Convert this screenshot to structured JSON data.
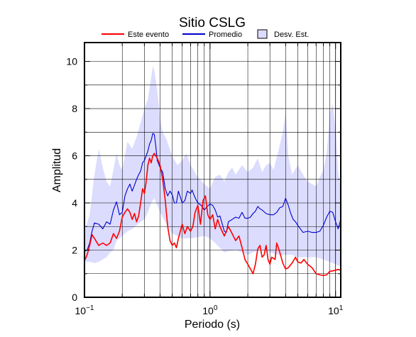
{
  "chart_data": {
    "type": "line",
    "title": "Sitio CSLG",
    "xlabel": "Periodo (s)",
    "ylabel": "Amplitud",
    "xscale": "log",
    "xlim": [
      0.1,
      11
    ],
    "ylim": [
      0,
      10.8
    ],
    "grid": true,
    "legend_position": "top",
    "x_ticks": [
      {
        "value": 0.1,
        "base": "10",
        "exp": "−1"
      },
      {
        "value": 1,
        "base": "10",
        "exp": "0"
      },
      {
        "value": 10,
        "base": "10",
        "exp": "1"
      }
    ],
    "y_ticks": [
      {
        "value": 0,
        "label": "0"
      },
      {
        "value": 2,
        "label": "2"
      },
      {
        "value": 4,
        "label": "4"
      },
      {
        "value": 6,
        "label": "6"
      },
      {
        "value": 8,
        "label": "8"
      },
      {
        "value": 10,
        "label": "10"
      }
    ],
    "legend": [
      {
        "label": "Este evento",
        "kind": "line",
        "color": "#ff0000"
      },
      {
        "label": "Promedio",
        "kind": "line",
        "color": "#0000cc"
      },
      {
        "label": "Desv. Est.",
        "kind": "patch",
        "color": "#dcdcff"
      }
    ],
    "series": [
      {
        "name": "Este evento",
        "color": "#ff0000",
        "points": [
          [
            0.1,
            1.55
          ],
          [
            0.105,
            1.8
          ],
          [
            0.11,
            2.2
          ],
          [
            0.115,
            2.65
          ],
          [
            0.12,
            2.5
          ],
          [
            0.13,
            2.2
          ],
          [
            0.14,
            2.3
          ],
          [
            0.15,
            2.2
          ],
          [
            0.16,
            2.3
          ],
          [
            0.17,
            2.7
          ],
          [
            0.18,
            2.5
          ],
          [
            0.19,
            2.8
          ],
          [
            0.2,
            3.4
          ],
          [
            0.21,
            3.6
          ],
          [
            0.22,
            3.75
          ],
          [
            0.23,
            3.6
          ],
          [
            0.24,
            3.3
          ],
          [
            0.25,
            3.55
          ],
          [
            0.26,
            3.2
          ],
          [
            0.27,
            3.45
          ],
          [
            0.28,
            4.0
          ],
          [
            0.29,
            4.6
          ],
          [
            0.3,
            4.4
          ],
          [
            0.31,
            4.9
          ],
          [
            0.32,
            5.6
          ],
          [
            0.33,
            5.9
          ],
          [
            0.34,
            5.7
          ],
          [
            0.35,
            6.0
          ],
          [
            0.36,
            6.1
          ],
          [
            0.38,
            5.9
          ],
          [
            0.4,
            5.6
          ],
          [
            0.42,
            5.0
          ],
          [
            0.44,
            4.1
          ],
          [
            0.46,
            3.0
          ],
          [
            0.48,
            2.4
          ],
          [
            0.5,
            2.2
          ],
          [
            0.52,
            2.3
          ],
          [
            0.54,
            2.1
          ],
          [
            0.56,
            2.5
          ],
          [
            0.58,
            2.8
          ],
          [
            0.6,
            3.1
          ],
          [
            0.63,
            2.7
          ],
          [
            0.66,
            3.0
          ],
          [
            0.7,
            2.8
          ],
          [
            0.73,
            3.0
          ],
          [
            0.76,
            3.6
          ],
          [
            0.8,
            3.9
          ],
          [
            0.84,
            3.1
          ],
          [
            0.88,
            4.1
          ],
          [
            0.92,
            4.3
          ],
          [
            0.96,
            3.5
          ],
          [
            1.0,
            3.3
          ],
          [
            1.05,
            3.5
          ],
          [
            1.1,
            2.9
          ],
          [
            1.15,
            3.3
          ],
          [
            1.2,
            3.0
          ],
          [
            1.3,
            2.6
          ],
          [
            1.4,
            3.0
          ],
          [
            1.5,
            2.7
          ],
          [
            1.6,
            2.4
          ],
          [
            1.7,
            2.6
          ],
          [
            1.8,
            2.1
          ],
          [
            1.9,
            1.6
          ],
          [
            2.0,
            1.4
          ],
          [
            2.1,
            1.2
          ],
          [
            2.2,
            1.0
          ],
          [
            2.3,
            1.4
          ],
          [
            2.4,
            2.05
          ],
          [
            2.5,
            2.2
          ],
          [
            2.6,
            1.7
          ],
          [
            2.7,
            1.8
          ],
          [
            2.8,
            2.2
          ],
          [
            2.9,
            1.6
          ],
          [
            3.0,
            1.4
          ],
          [
            3.1,
            1.7
          ],
          [
            3.2,
            1.65
          ],
          [
            3.3,
            1.6
          ],
          [
            3.4,
            2.3
          ],
          [
            3.5,
            2.1
          ],
          [
            3.6,
            1.9
          ],
          [
            3.8,
            1.45
          ],
          [
            4.0,
            1.2
          ],
          [
            4.2,
            1.25
          ],
          [
            4.5,
            1.45
          ],
          [
            4.8,
            1.7
          ],
          [
            5.0,
            1.5
          ],
          [
            5.3,
            1.45
          ],
          [
            5.6,
            1.6
          ],
          [
            6.0,
            1.4
          ],
          [
            6.5,
            1.25
          ],
          [
            7.0,
            1.0
          ],
          [
            7.5,
            0.95
          ],
          [
            8.0,
            0.92
          ],
          [
            8.5,
            0.95
          ],
          [
            9.0,
            1.1
          ],
          [
            9.5,
            1.12
          ],
          [
            10.0,
            1.15
          ],
          [
            10.5,
            1.18
          ],
          [
            11.0,
            1.15
          ]
        ]
      },
      {
        "name": "Promedio",
        "color": "#0000cc",
        "points": [
          [
            0.1,
            1.95
          ],
          [
            0.105,
            2.0
          ],
          [
            0.11,
            2.3
          ],
          [
            0.115,
            2.8
          ],
          [
            0.12,
            3.15
          ],
          [
            0.13,
            3.1
          ],
          [
            0.14,
            2.9
          ],
          [
            0.15,
            3.2
          ],
          [
            0.16,
            3.1
          ],
          [
            0.17,
            3.7
          ],
          [
            0.18,
            4.05
          ],
          [
            0.19,
            3.5
          ],
          [
            0.2,
            3.6
          ],
          [
            0.21,
            4.3
          ],
          [
            0.22,
            4.6
          ],
          [
            0.23,
            4.8
          ],
          [
            0.24,
            4.5
          ],
          [
            0.25,
            4.75
          ],
          [
            0.26,
            5.0
          ],
          [
            0.27,
            5.2
          ],
          [
            0.28,
            5.35
          ],
          [
            0.29,
            5.7
          ],
          [
            0.3,
            5.8
          ],
          [
            0.31,
            6.0
          ],
          [
            0.32,
            6.2
          ],
          [
            0.33,
            6.5
          ],
          [
            0.34,
            6.65
          ],
          [
            0.35,
            6.95
          ],
          [
            0.36,
            6.9
          ],
          [
            0.37,
            6.4
          ],
          [
            0.38,
            5.8
          ],
          [
            0.4,
            5.5
          ],
          [
            0.42,
            5.3
          ],
          [
            0.44,
            4.6
          ],
          [
            0.46,
            4.3
          ],
          [
            0.48,
            4.5
          ],
          [
            0.5,
            4.35
          ],
          [
            0.52,
            4.0
          ],
          [
            0.54,
            4.0
          ],
          [
            0.56,
            4.5
          ],
          [
            0.58,
            4.25
          ],
          [
            0.6,
            4.0
          ],
          [
            0.63,
            4.1
          ],
          [
            0.66,
            4.5
          ],
          [
            0.7,
            4.4
          ],
          [
            0.72,
            4.55
          ],
          [
            0.75,
            4.3
          ],
          [
            0.78,
            4.1
          ],
          [
            0.8,
            4.0
          ],
          [
            0.85,
            3.9
          ],
          [
            0.9,
            3.7
          ],
          [
            0.95,
            3.85
          ],
          [
            1.0,
            3.95
          ],
          [
            1.05,
            3.9
          ],
          [
            1.1,
            3.7
          ],
          [
            1.15,
            3.4
          ],
          [
            1.2,
            3.45
          ],
          [
            1.3,
            2.8
          ],
          [
            1.35,
            2.75
          ],
          [
            1.4,
            3.2
          ],
          [
            1.5,
            3.3
          ],
          [
            1.6,
            3.4
          ],
          [
            1.7,
            3.35
          ],
          [
            1.8,
            3.6
          ],
          [
            1.9,
            3.35
          ],
          [
            2.0,
            3.35
          ],
          [
            2.1,
            3.4
          ],
          [
            2.2,
            3.55
          ],
          [
            2.3,
            3.65
          ],
          [
            2.4,
            3.85
          ],
          [
            2.5,
            3.75
          ],
          [
            2.6,
            3.7
          ],
          [
            2.8,
            3.55
          ],
          [
            3.0,
            3.5
          ],
          [
            3.2,
            3.5
          ],
          [
            3.4,
            3.6
          ],
          [
            3.6,
            3.8
          ],
          [
            3.8,
            3.85
          ],
          [
            4.0,
            4.2
          ],
          [
            4.2,
            3.9
          ],
          [
            4.4,
            3.55
          ],
          [
            4.6,
            3.3
          ],
          [
            4.8,
            3.2
          ],
          [
            5.0,
            3.05
          ],
          [
            5.5,
            2.75
          ],
          [
            6.0,
            2.8
          ],
          [
            6.5,
            2.75
          ],
          [
            7.0,
            2.75
          ],
          [
            7.5,
            2.8
          ],
          [
            8.0,
            3.05
          ],
          [
            8.5,
            3.4
          ],
          [
            9.0,
            3.65
          ],
          [
            9.5,
            3.6
          ],
          [
            10.0,
            3.2
          ],
          [
            10.5,
            2.9
          ],
          [
            11.0,
            3.3
          ]
        ]
      }
    ],
    "band": {
      "name": "Desv. Est.",
      "color": "#dcdcff",
      "upper": [
        [
          0.1,
          2.8
        ],
        [
          0.11,
          3.5
        ],
        [
          0.12,
          5.2
        ],
        [
          0.13,
          6.3
        ],
        [
          0.14,
          5.5
        ],
        [
          0.15,
          4.9
        ],
        [
          0.16,
          4.7
        ],
        [
          0.17,
          5.4
        ],
        [
          0.18,
          6.1
        ],
        [
          0.19,
          5.6
        ],
        [
          0.2,
          5.4
        ],
        [
          0.22,
          6.6
        ],
        [
          0.24,
          6.3
        ],
        [
          0.26,
          6.8
        ],
        [
          0.28,
          7.4
        ],
        [
          0.3,
          8.0
        ],
        [
          0.32,
          8.4
        ],
        [
          0.34,
          9.3
        ],
        [
          0.35,
          9.8
        ],
        [
          0.36,
          9.6
        ],
        [
          0.38,
          8.8
        ],
        [
          0.4,
          7.6
        ],
        [
          0.42,
          7.0
        ],
        [
          0.45,
          6.7
        ],
        [
          0.5,
          6.0
        ],
        [
          0.55,
          5.6
        ],
        [
          0.6,
          5.8
        ],
        [
          0.65,
          6.1
        ],
        [
          0.7,
          5.6
        ],
        [
          0.8,
          5.1
        ],
        [
          0.9,
          4.8
        ],
        [
          1.0,
          4.6
        ],
        [
          1.1,
          5.1
        ],
        [
          1.2,
          5.2
        ],
        [
          1.3,
          4.9
        ],
        [
          1.4,
          5.3
        ],
        [
          1.5,
          5.5
        ],
        [
          1.6,
          5.2
        ],
        [
          1.8,
          5.6
        ],
        [
          2.0,
          5.3
        ],
        [
          2.2,
          5.5
        ],
        [
          2.4,
          5.9
        ],
        [
          2.6,
          5.3
        ],
        [
          2.8,
          5.6
        ],
        [
          3.0,
          5.7
        ],
        [
          3.2,
          5.4
        ],
        [
          3.5,
          6.2
        ],
        [
          3.8,
          7.0
        ],
        [
          4.0,
          7.9
        ],
        [
          4.2,
          6.0
        ],
        [
          4.5,
          5.2
        ],
        [
          5.0,
          5.6
        ],
        [
          5.5,
          5.2
        ],
        [
          6.0,
          4.9
        ],
        [
          6.5,
          4.8
        ],
        [
          7.0,
          4.7
        ],
        [
          7.5,
          5.1
        ],
        [
          8.0,
          5.4
        ],
        [
          8.5,
          6.1
        ],
        [
          9.0,
          7.8
        ],
        [
          9.5,
          8.2
        ],
        [
          10.0,
          7.1
        ],
        [
          10.5,
          5.3
        ],
        [
          11.0,
          4.6
        ]
      ],
      "lower": [
        [
          0.1,
          1.5
        ],
        [
          0.11,
          1.5
        ],
        [
          0.12,
          1.45
        ],
        [
          0.13,
          1.5
        ],
        [
          0.14,
          1.6
        ],
        [
          0.15,
          1.7
        ],
        [
          0.16,
          1.9
        ],
        [
          0.17,
          2.0
        ],
        [
          0.18,
          2.4
        ],
        [
          0.2,
          2.6
        ],
        [
          0.22,
          2.8
        ],
        [
          0.24,
          2.9
        ],
        [
          0.26,
          3.05
        ],
        [
          0.28,
          3.2
        ],
        [
          0.3,
          3.3
        ],
        [
          0.32,
          3.6
        ],
        [
          0.34,
          4.0
        ],
        [
          0.36,
          4.2
        ],
        [
          0.38,
          3.9
        ],
        [
          0.4,
          3.6
        ],
        [
          0.45,
          3.1
        ],
        [
          0.5,
          2.7
        ],
        [
          0.55,
          2.6
        ],
        [
          0.6,
          2.5
        ],
        [
          0.7,
          2.5
        ],
        [
          0.8,
          2.55
        ],
        [
          0.9,
          2.6
        ],
        [
          1.0,
          2.5
        ],
        [
          1.1,
          2.3
        ],
        [
          1.2,
          2.1
        ],
        [
          1.3,
          1.9
        ],
        [
          1.4,
          1.95
        ],
        [
          1.6,
          2.0
        ],
        [
          1.8,
          1.9
        ],
        [
          2.0,
          1.8
        ],
        [
          2.2,
          1.9
        ],
        [
          2.5,
          2.0
        ],
        [
          3.0,
          1.9
        ],
        [
          3.5,
          1.8
        ],
        [
          4.0,
          1.8
        ],
        [
          4.5,
          1.8
        ],
        [
          5.0,
          1.7
        ],
        [
          6.0,
          1.7
        ],
        [
          7.0,
          1.7
        ],
        [
          8.0,
          1.6
        ],
        [
          9.0,
          1.5
        ],
        [
          10.0,
          1.4
        ],
        [
          11.0,
          1.3
        ]
      ]
    }
  }
}
